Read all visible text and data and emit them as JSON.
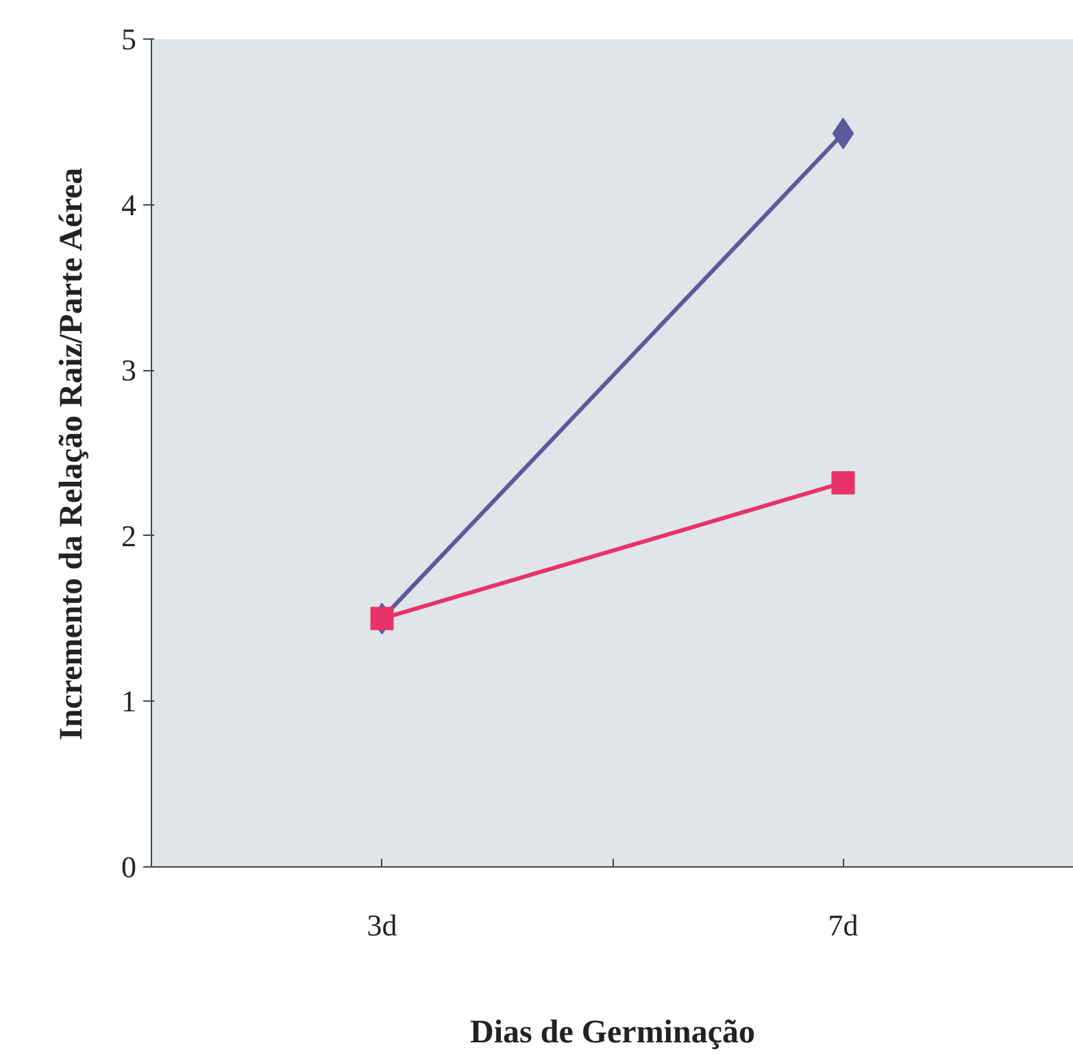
{
  "chart_data": {
    "type": "line",
    "xlabel": "Dias de Germinação",
    "ylabel": "Incremento da Relação Raiz/Parte Aérea",
    "categories": [
      "3d",
      "7d"
    ],
    "series": [
      {
        "color": "#5a5a9c",
        "values": [
          1.5,
          4.43
        ],
        "marker": "diamond"
      },
      {
        "color": "#e8336a",
        "values": [
          1.5,
          2.32
        ],
        "marker": "square"
      }
    ],
    "ylim": [
      0,
      5
    ],
    "yticks": [
      0,
      1,
      2,
      3,
      4,
      5
    ],
    "grid": false,
    "line_style": "solid"
  }
}
